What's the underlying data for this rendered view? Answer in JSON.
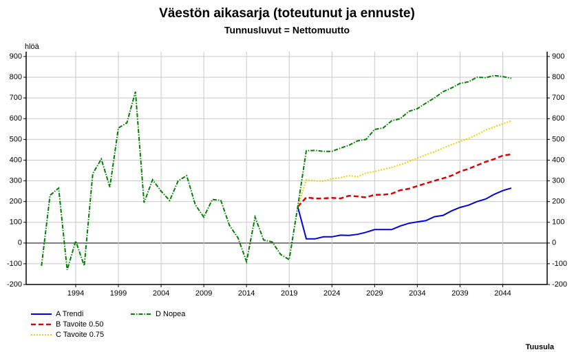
{
  "chart_data": {
    "type": "line",
    "title": "Väestön aikasarja (toteutunut ja ennuste)",
    "subtitle": "Tunnusluvut = Nettomuutto",
    "ylabel": "hlöä",
    "footnote": "Tuusula",
    "x": [
      1990,
      1991,
      1992,
      1993,
      1994,
      1995,
      1996,
      1997,
      1998,
      1999,
      2000,
      2001,
      2002,
      2003,
      2004,
      2005,
      2006,
      2007,
      2008,
      2009,
      2010,
      2011,
      2012,
      2013,
      2014,
      2015,
      2016,
      2017,
      2018,
      2019,
      2020,
      2021,
      2022,
      2023,
      2024,
      2025,
      2026,
      2027,
      2028,
      2029,
      2030,
      2031,
      2032,
      2033,
      2034,
      2035,
      2036,
      2037,
      2038,
      2039,
      2040,
      2041,
      2042,
      2043,
      2044,
      2045
    ],
    "series": [
      {
        "name": "A Trendi",
        "color": "#0000e0",
        "dash": "solid",
        "values": [
          null,
          null,
          null,
          null,
          null,
          null,
          null,
          null,
          null,
          null,
          null,
          null,
          null,
          null,
          null,
          null,
          null,
          null,
          null,
          null,
          null,
          null,
          null,
          null,
          null,
          null,
          null,
          null,
          null,
          null,
          175,
          20,
          20,
          30,
          30,
          38,
          37,
          42,
          52,
          65,
          65,
          65,
          82,
          95,
          102,
          108,
          127,
          133,
          155,
          172,
          183,
          200,
          212,
          235,
          253,
          265
        ]
      },
      {
        "name": "B Tavoite 0.50",
        "color": "#e00000",
        "dash": "dashed",
        "values": [
          null,
          null,
          null,
          null,
          null,
          null,
          null,
          null,
          null,
          null,
          null,
          null,
          null,
          null,
          null,
          null,
          null,
          null,
          null,
          null,
          null,
          null,
          null,
          null,
          null,
          null,
          null,
          null,
          null,
          null,
          175,
          220,
          215,
          215,
          218,
          215,
          228,
          225,
          220,
          233,
          233,
          238,
          255,
          262,
          275,
          288,
          300,
          312,
          325,
          345,
          358,
          375,
          392,
          405,
          422,
          428
        ]
      },
      {
        "name": "C Tavoite 0.75",
        "color": "#f0d000",
        "dash": "dotted",
        "values": [
          null,
          null,
          null,
          null,
          null,
          null,
          null,
          null,
          null,
          null,
          null,
          null,
          null,
          null,
          null,
          null,
          null,
          null,
          null,
          null,
          null,
          null,
          null,
          null,
          null,
          null,
          null,
          null,
          null,
          null,
          175,
          305,
          300,
          298,
          310,
          315,
          325,
          320,
          338,
          345,
          355,
          365,
          378,
          393,
          410,
          425,
          440,
          458,
          475,
          490,
          505,
          523,
          545,
          560,
          575,
          590
        ]
      },
      {
        "name": "D Nopea",
        "color": "#008000",
        "dash": "dashdot",
        "values": [
          -110,
          230,
          265,
          -130,
          10,
          -110,
          335,
          405,
          270,
          555,
          580,
          730,
          195,
          305,
          250,
          205,
          300,
          325,
          185,
          125,
          210,
          205,
          85,
          25,
          -90,
          125,
          15,
          5,
          -55,
          -80,
          175,
          445,
          447,
          442,
          442,
          458,
          472,
          493,
          500,
          548,
          555,
          590,
          600,
          635,
          648,
          675,
          700,
          730,
          748,
          770,
          778,
          800,
          798,
          808,
          803,
          795
        ]
      }
    ],
    "xlim": [
      1988.2,
      2049.2
    ],
    "xticks": [
      1994,
      1999,
      2004,
      2009,
      2014,
      2019,
      2024,
      2029,
      2034,
      2039,
      2044
    ],
    "ylim": [
      -200,
      900
    ],
    "yticks": [
      -200,
      -100,
      0,
      100,
      200,
      300,
      400,
      500,
      600,
      700,
      800,
      900
    ],
    "y2lim": [
      -200,
      900
    ],
    "y2ticks": [
      -200,
      -100,
      0,
      100,
      200,
      300,
      400,
      500,
      600,
      700,
      800,
      900
    ],
    "grid": true
  }
}
